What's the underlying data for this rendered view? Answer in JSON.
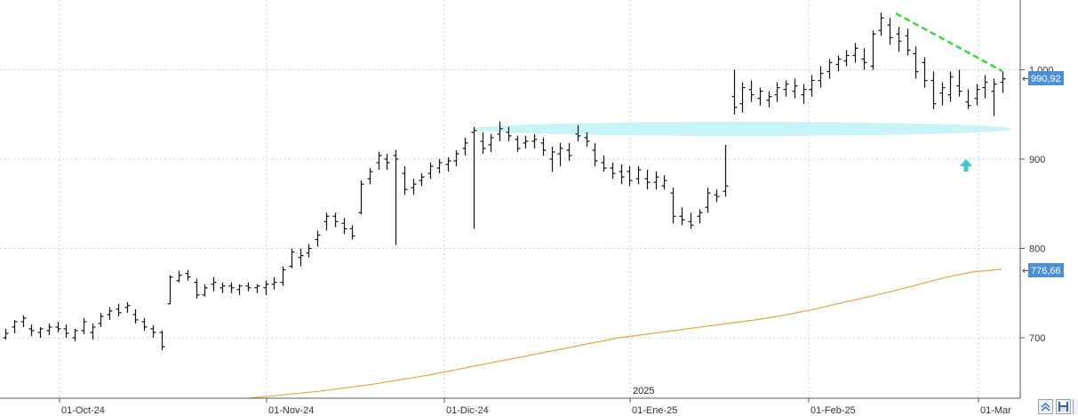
{
  "chart_data": {
    "type": "bar",
    "subtype": "ohlc",
    "x_ticks": [
      "01-Oct-24",
      "01-Nov-24",
      "01-Dic-24",
      "01-Ene-25",
      "01-Feb-25",
      "01-Mar"
    ],
    "year_marker": "2025",
    "y_ticks": [
      "700",
      "800",
      "900",
      "1.000"
    ],
    "ylim": [
      625,
      1075
    ],
    "grid": true,
    "price_tag": "990,92",
    "ma_tag": "776,66",
    "colors": {
      "bars": "#111111",
      "moving_average": "#e8a33c",
      "trendline": "#33dd33",
      "support_zone": "#c8f4f8",
      "arrow": "#3cc8c8",
      "tag_bg": "#4a90d9"
    },
    "series": [
      {
        "ohlc": [
          [
            700,
            710,
            698,
            705
          ],
          [
            712,
            720,
            705,
            718
          ],
          [
            718,
            725,
            712,
            722
          ],
          [
            710,
            715,
            702,
            708
          ],
          [
            706,
            712,
            700,
            710
          ],
          [
            708,
            716,
            703,
            712
          ],
          [
            712,
            718,
            706,
            710
          ],
          [
            710,
            715,
            700,
            705
          ],
          [
            700,
            710,
            696,
            708
          ],
          [
            708,
            722,
            704,
            718
          ],
          [
            706,
            716,
            698,
            712
          ],
          [
            716,
            728,
            712,
            724
          ],
          [
            726,
            734,
            720,
            730
          ],
          [
            732,
            738,
            724,
            728
          ],
          [
            734,
            740,
            728,
            736
          ],
          [
            726,
            732,
            716,
            720
          ],
          [
            718,
            722,
            708,
            712
          ],
          [
            710,
            714,
            700,
            706
          ],
          [
            706,
            708,
            686,
            690
          ],
          [
            738,
            770,
            738,
            768
          ],
          [
            764,
            775,
            762,
            770
          ],
          [
            772,
            776,
            764,
            768
          ],
          [
            762,
            766,
            744,
            748
          ],
          [
            748,
            760,
            746,
            756
          ],
          [
            760,
            768,
            752,
            762
          ],
          [
            756,
            762,
            750,
            758
          ],
          [
            758,
            762,
            750,
            756
          ],
          [
            754,
            760,
            748,
            758
          ],
          [
            758,
            762,
            752,
            756
          ],
          [
            756,
            760,
            750,
            758
          ],
          [
            756,
            764,
            748,
            760
          ],
          [
            760,
            768,
            754,
            762
          ],
          [
            762,
            780,
            758,
            776
          ],
          [
            780,
            800,
            778,
            796
          ],
          [
            790,
            800,
            780,
            792
          ],
          [
            795,
            805,
            790,
            800
          ],
          [
            810,
            820,
            802,
            815
          ],
          [
            830,
            840,
            820,
            836
          ],
          [
            836,
            840,
            824,
            830
          ],
          [
            828,
            834,
            816,
            822
          ],
          [
            822,
            826,
            810,
            814
          ],
          [
            840,
            876,
            838,
            872
          ],
          [
            878,
            890,
            872,
            886
          ],
          [
            896,
            908,
            888,
            904
          ],
          [
            900,
            906,
            888,
            896
          ],
          [
            904,
            910,
            804,
            900
          ],
          [
            884,
            892,
            860,
            866
          ],
          [
            868,
            878,
            860,
            872
          ],
          [
            876,
            884,
            870,
            880
          ],
          [
            884,
            896,
            878,
            892
          ],
          [
            890,
            900,
            884,
            896
          ],
          [
            894,
            902,
            886,
            898
          ],
          [
            898,
            910,
            892,
            906
          ],
          [
            912,
            924,
            904,
            918
          ],
          [
            930,
            936,
            822,
            932
          ],
          [
            920,
            930,
            906,
            912
          ],
          [
            916,
            928,
            908,
            924
          ],
          [
            928,
            942,
            920,
            934
          ],
          [
            930,
            936,
            920,
            926
          ],
          [
            922,
            926,
            908,
            912
          ],
          [
            918,
            926,
            912,
            920
          ],
          [
            920,
            928,
            912,
            922
          ],
          [
            918,
            924,
            904,
            910
          ],
          [
            900,
            914,
            886,
            908
          ],
          [
            906,
            918,
            892,
            912
          ],
          [
            910,
            918,
            898,
            904
          ],
          [
            928,
            938,
            920,
            926
          ],
          [
            924,
            930,
            914,
            920
          ],
          [
            910,
            918,
            892,
            898
          ],
          [
            896,
            904,
            886,
            890
          ],
          [
            890,
            896,
            878,
            884
          ],
          [
            886,
            894,
            872,
            880
          ],
          [
            886,
            892,
            870,
            876
          ],
          [
            878,
            892,
            872,
            888
          ],
          [
            878,
            888,
            866,
            874
          ],
          [
            874,
            886,
            866,
            880
          ],
          [
            870,
            882,
            866,
            876
          ],
          [
            862,
            868,
            828,
            836
          ],
          [
            836,
            846,
            826,
            832
          ],
          [
            830,
            840,
            822,
            826
          ],
          [
            836,
            844,
            828,
            840
          ],
          [
            846,
            868,
            840,
            862
          ],
          [
            860,
            866,
            852,
            858
          ],
          [
            864,
            916,
            858,
            870
          ],
          [
            970,
            1000,
            950,
            958
          ],
          [
            962,
            986,
            952,
            980
          ],
          [
            978,
            988,
            964,
            972
          ],
          [
            968,
            980,
            960,
            976
          ],
          [
            966,
            976,
            958,
            970
          ],
          [
            972,
            986,
            964,
            980
          ],
          [
            978,
            988,
            970,
            984
          ],
          [
            976,
            990,
            968,
            982
          ],
          [
            972,
            984,
            962,
            978
          ],
          [
            978,
            994,
            970,
            988
          ],
          [
            988,
            1004,
            980,
            996
          ],
          [
            998,
            1012,
            990,
            1008
          ],
          [
            1006,
            1016,
            998,
            1012
          ],
          [
            1010,
            1022,
            1004,
            1016
          ],
          [
            1016,
            1030,
            1008,
            1024
          ],
          [
            1012,
            1024,
            1000,
            1008
          ],
          [
            1004,
            1044,
            1000,
            1040
          ],
          [
            1044,
            1064,
            1038,
            1058
          ],
          [
            1050,
            1058,
            1028,
            1036
          ],
          [
            1040,
            1048,
            1020,
            1032
          ],
          [
            1038,
            1046,
            1016,
            1022
          ],
          [
            1018,
            1026,
            990,
            998
          ],
          [
            1008,
            1014,
            980,
            988
          ],
          [
            988,
            998,
            956,
            962
          ],
          [
            974,
            986,
            960,
            980
          ],
          [
            972,
            998,
            964,
            992
          ],
          [
            982,
            1000,
            970,
            976
          ],
          [
            964,
            978,
            956,
            960
          ],
          [
            968,
            984,
            960,
            978
          ],
          [
            980,
            994,
            968,
            986
          ],
          [
            976,
            990,
            948,
            984
          ],
          [
            986,
            998,
            974,
            990
          ]
        ]
      },
      {
        "ma_values": [
          628,
          631,
          634,
          637,
          640,
          644,
          648,
          653,
          658,
          664,
          670,
          676,
          682,
          688,
          694,
          700,
          704,
          708,
          712,
          716,
          720,
          725,
          731,
          738,
          745,
          752,
          760,
          768,
          774,
          776.66
        ]
      }
    ],
    "annotations": {
      "support_zone_level": 934,
      "trendline": [
        [
          1062,
          999
        ]
      ],
      "arrow_level": 893
    }
  },
  "toolbar": {
    "zoom_icon": "double-chevron-up-icon",
    "save_icon": "save-icon"
  }
}
